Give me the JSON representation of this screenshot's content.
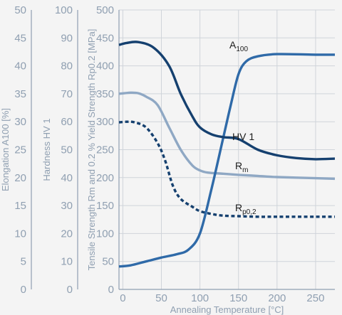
{
  "chart_data": {
    "type": "line",
    "x_axis": {
      "label": "Annealing Temperature [°C]",
      "range": [
        -5,
        275
      ],
      "ticks": [
        0,
        50,
        100,
        150,
        200,
        250
      ]
    },
    "y_axes": [
      {
        "id": "elong",
        "label": "Elongation A100 [%]",
        "range": [
          0,
          50
        ],
        "ticks": [
          0,
          5,
          10,
          15,
          20,
          25,
          30,
          35,
          40,
          45,
          50
        ]
      },
      {
        "id": "hard",
        "label": "Hardness HV 1",
        "range": [
          0,
          100
        ],
        "ticks": [
          0,
          10,
          20,
          30,
          40,
          50,
          60,
          70,
          80,
          90,
          100
        ]
      },
      {
        "id": "strength",
        "label": "Tensile Strength Rm and 0.2 % Yield Strength Rp0.2 [MPa]",
        "range": [
          0,
          500
        ],
        "ticks": [
          0,
          50,
          100,
          150,
          200,
          250,
          300,
          350,
          400,
          450,
          500
        ]
      }
    ],
    "grid": true,
    "series": [
      {
        "name": "A100",
        "name_main": "A",
        "name_sub": "100",
        "axis": "elong",
        "color": "#2f6aa8",
        "dashed": false,
        "points": [
          [
            -5,
            4.1
          ],
          [
            10,
            4.3
          ],
          [
            30,
            5.0
          ],
          [
            50,
            5.7
          ],
          [
            70,
            6.3
          ],
          [
            85,
            7.1
          ],
          [
            100,
            10
          ],
          [
            115,
            18
          ],
          [
            130,
            27
          ],
          [
            140,
            33
          ],
          [
            150,
            38.5
          ],
          [
            160,
            40.8
          ],
          [
            175,
            41.7
          ],
          [
            200,
            42.1
          ],
          [
            250,
            42.0
          ],
          [
            275,
            42.0
          ]
        ]
      },
      {
        "name": "HV 1",
        "axis": "hard",
        "color": "#15406f",
        "dashed": false,
        "points": [
          [
            -5,
            87.5
          ],
          [
            5,
            88.2
          ],
          [
            20,
            88.5
          ],
          [
            40,
            86.5
          ],
          [
            60,
            80
          ],
          [
            75,
            70
          ],
          [
            90,
            62
          ],
          [
            100,
            58
          ],
          [
            115,
            55.5
          ],
          [
            130,
            54.5
          ],
          [
            150,
            53.8
          ],
          [
            175,
            50
          ],
          [
            200,
            48
          ],
          [
            225,
            47
          ],
          [
            250,
            46.6
          ],
          [
            275,
            46.8
          ]
        ]
      },
      {
        "name": "Rm",
        "name_main": "R",
        "name_sub": "m",
        "axis": "strength",
        "color": "#8fa8c4",
        "dashed": false,
        "points": [
          [
            -5,
            350
          ],
          [
            10,
            352
          ],
          [
            20,
            351
          ],
          [
            30,
            345
          ],
          [
            45,
            330
          ],
          [
            60,
            290
          ],
          [
            75,
            250
          ],
          [
            90,
            222
          ],
          [
            100,
            213
          ],
          [
            110,
            209
          ],
          [
            130,
            207
          ],
          [
            150,
            205
          ],
          [
            175,
            203
          ],
          [
            200,
            201
          ],
          [
            250,
            199
          ],
          [
            275,
            198
          ]
        ]
      },
      {
        "name": "Rp0,2",
        "name_main": "R",
        "name_sub": "p0,2",
        "axis": "strength",
        "color": "#15406f",
        "dashed": true,
        "points": [
          [
            -5,
            299
          ],
          [
            5,
            300
          ],
          [
            15,
            299
          ],
          [
            30,
            290
          ],
          [
            45,
            262
          ],
          [
            55,
            230
          ],
          [
            65,
            185
          ],
          [
            75,
            162
          ],
          [
            90,
            148
          ],
          [
            100,
            140
          ],
          [
            115,
            135
          ],
          [
            130,
            132
          ],
          [
            150,
            131
          ],
          [
            175,
            130
          ],
          [
            200,
            130
          ],
          [
            250,
            130
          ],
          [
            275,
            130
          ]
        ]
      }
    ]
  }
}
